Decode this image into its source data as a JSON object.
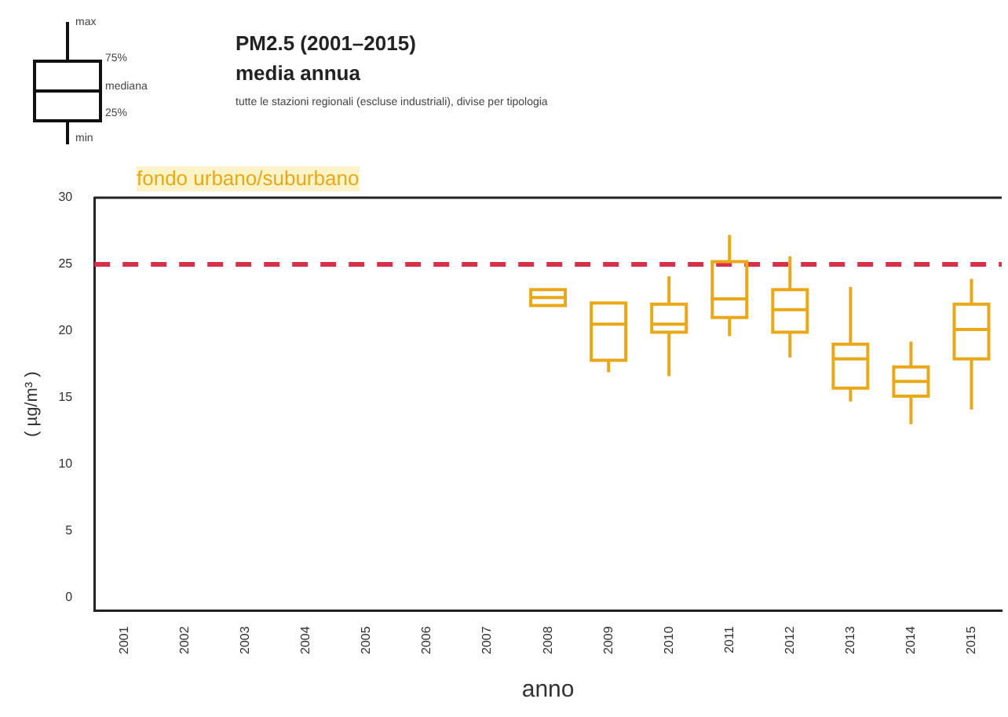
{
  "chart_data": {
    "type": "box",
    "title": "PM2.5 (2001–2015)",
    "subtitle": "media annua",
    "xlabel": "anno",
    "ylabel": "( µg/m³ )",
    "annotations": [
      "tutte le stazioni regionali (escluse industriali), divise per tipologia",
      "fondo urbano/suburbano",
      "max",
      "75%",
      "mediana",
      "25%",
      "min"
    ],
    "categories": [
      "2001",
      "2002",
      "2003",
      "2004",
      "2005",
      "2006",
      "2007",
      "2008",
      "2009",
      "2010",
      "2011",
      "2012",
      "2013",
      "2014",
      "2015"
    ],
    "color": "#e8a817",
    "boxes": [
      null,
      null,
      null,
      null,
      null,
      null,
      null,
      {
        "low": 21.9,
        "q1": 21.9,
        "median": 22.5,
        "q3": 23.1,
        "high": 23.1
      },
      {
        "low": 16.9,
        "q1": 17.8,
        "median": 20.5,
        "q3": 22.1,
        "high": 22.1
      },
      {
        "low": 16.6,
        "q1": 19.9,
        "median": 20.5,
        "q3": 22.0,
        "high": 24.1
      },
      {
        "low": 19.6,
        "q1": 21.0,
        "median": 22.4,
        "q3": 25.2,
        "high": 27.2
      },
      {
        "low": 18.0,
        "q1": 19.9,
        "median": 21.6,
        "q3": 23.1,
        "high": 25.6
      },
      {
        "low": 14.7,
        "q1": 15.7,
        "median": 17.9,
        "q3": 19.0,
        "high": 23.3
      },
      {
        "low": 13.0,
        "q1": 15.1,
        "median": 16.2,
        "q3": 17.3,
        "high": 19.2
      },
      {
        "low": 14.1,
        "q1": 17.9,
        "median": 20.1,
        "q3": 22.0,
        "high": 23.9
      }
    ],
    "ylim": [
      -1,
      30
    ],
    "yticks": [
      0,
      5,
      10,
      15,
      20,
      25,
      30
    ],
    "ref_lines": [
      {
        "axis": "y",
        "value": 25,
        "color": "#d9304a",
        "line_style": "dashed"
      }
    ],
    "grid": false,
    "legend": false
  }
}
